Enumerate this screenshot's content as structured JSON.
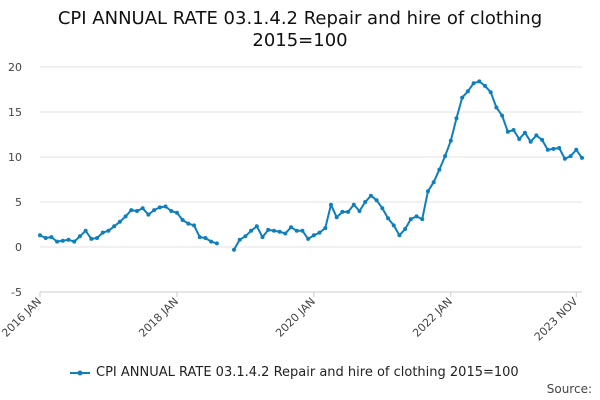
{
  "chart_data": {
    "type": "line",
    "title_line1": "CPI ANNUAL RATE 03.1.4.2 Repair and hire of clothing",
    "title_line2": "2015=100",
    "y_ticks": [
      20,
      15,
      10,
      5,
      0,
      -5
    ],
    "ylim": [
      -5,
      20
    ],
    "grid": true,
    "legend_position": "bottom",
    "x_tick_labels": [
      "2016 JAN",
      "2018 JAN",
      "2020 JAN",
      "2022 JAN",
      "2023 NOV"
    ],
    "x_tick_values": [
      "2016-01",
      "2018-01",
      "2020-01",
      "2022-01",
      "2023-11"
    ],
    "series": [
      {
        "name": "CPI ANNUAL RATE 03.1.4.2 Repair and hire of clothing 2015=100",
        "color": "#0e7ebc",
        "points": [
          [
            "2016-01",
            1.3
          ],
          [
            "2016-02",
            1.0
          ],
          [
            "2016-03",
            1.1
          ],
          [
            "2016-04",
            0.6
          ],
          [
            "2016-05",
            0.7
          ],
          [
            "2016-06",
            0.8
          ],
          [
            "2016-07",
            0.6
          ],
          [
            "2016-08",
            1.2
          ],
          [
            "2016-09",
            1.8
          ],
          [
            "2016-10",
            0.9
          ],
          [
            "2016-11",
            1.0
          ],
          [
            "2016-12",
            1.6
          ],
          [
            "2017-01",
            1.8
          ],
          [
            "2017-02",
            2.3
          ],
          [
            "2017-03",
            2.8
          ],
          [
            "2017-04",
            3.4
          ],
          [
            "2017-05",
            4.1
          ],
          [
            "2017-06",
            4.0
          ],
          [
            "2017-07",
            4.3
          ],
          [
            "2017-08",
            3.6
          ],
          [
            "2017-09",
            4.1
          ],
          [
            "2017-10",
            4.4
          ],
          [
            "2017-11",
            4.5
          ],
          [
            "2017-12",
            4.0
          ],
          [
            "2018-01",
            3.8
          ],
          [
            "2018-02",
            3.0
          ],
          [
            "2018-03",
            2.6
          ],
          [
            "2018-04",
            2.4
          ],
          [
            "2018-05",
            1.1
          ],
          [
            "2018-06",
            1.0
          ],
          [
            "2018-07",
            0.6
          ],
          [
            "2018-08",
            0.4
          ],
          [
            "2018-09",
            null
          ],
          [
            "2018-10",
            null
          ],
          [
            "2018-11",
            -0.3
          ],
          [
            "2018-12",
            0.8
          ],
          [
            "2019-01",
            1.2
          ],
          [
            "2019-02",
            1.8
          ],
          [
            "2019-03",
            2.3
          ],
          [
            "2019-04",
            1.1
          ],
          [
            "2019-05",
            1.9
          ],
          [
            "2019-06",
            1.8
          ],
          [
            "2019-07",
            1.7
          ],
          [
            "2019-08",
            1.5
          ],
          [
            "2019-09",
            2.2
          ],
          [
            "2019-10",
            1.8
          ],
          [
            "2019-11",
            1.8
          ],
          [
            "2019-12",
            0.9
          ],
          [
            "2020-01",
            1.3
          ],
          [
            "2020-02",
            1.6
          ],
          [
            "2020-03",
            2.1
          ],
          [
            "2020-04",
            4.7
          ],
          [
            "2020-05",
            3.3
          ],
          [
            "2020-06",
            3.9
          ],
          [
            "2020-07",
            3.9
          ],
          [
            "2020-08",
            4.7
          ],
          [
            "2020-09",
            4.0
          ],
          [
            "2020-10",
            5.0
          ],
          [
            "2020-11",
            5.7
          ],
          [
            "2020-12",
            5.2
          ],
          [
            "2021-01",
            4.3
          ],
          [
            "2021-02",
            3.2
          ],
          [
            "2021-03",
            2.4
          ],
          [
            "2021-04",
            1.3
          ],
          [
            "2021-05",
            2.0
          ],
          [
            "2021-06",
            3.1
          ],
          [
            "2021-07",
            3.4
          ],
          [
            "2021-08",
            3.1
          ],
          [
            "2021-09",
            6.2
          ],
          [
            "2021-10",
            7.2
          ],
          [
            "2021-11",
            8.6
          ],
          [
            "2021-12",
            10.1
          ],
          [
            "2022-01",
            11.8
          ],
          [
            "2022-02",
            14.3
          ],
          [
            "2022-03",
            16.6
          ],
          [
            "2022-04",
            17.3
          ],
          [
            "2022-05",
            18.2
          ],
          [
            "2022-06",
            18.4
          ],
          [
            "2022-07",
            17.9
          ],
          [
            "2022-08",
            17.2
          ],
          [
            "2022-09",
            15.5
          ],
          [
            "2022-10",
            14.6
          ],
          [
            "2022-11",
            12.8
          ],
          [
            "2022-12",
            13.0
          ],
          [
            "2023-01",
            12.0
          ],
          [
            "2023-02",
            12.7
          ],
          [
            "2023-03",
            11.7
          ],
          [
            "2023-04",
            12.4
          ],
          [
            "2023-05",
            11.9
          ],
          [
            "2023-06",
            10.8
          ],
          [
            "2023-07",
            10.9
          ],
          [
            "2023-08",
            11.0
          ],
          [
            "2023-09",
            9.8
          ],
          [
            "2023-10",
            10.1
          ],
          [
            "2023-11",
            10.8
          ],
          [
            "2023-12",
            9.9
          ]
        ]
      }
    ]
  },
  "source_label": "Source:"
}
